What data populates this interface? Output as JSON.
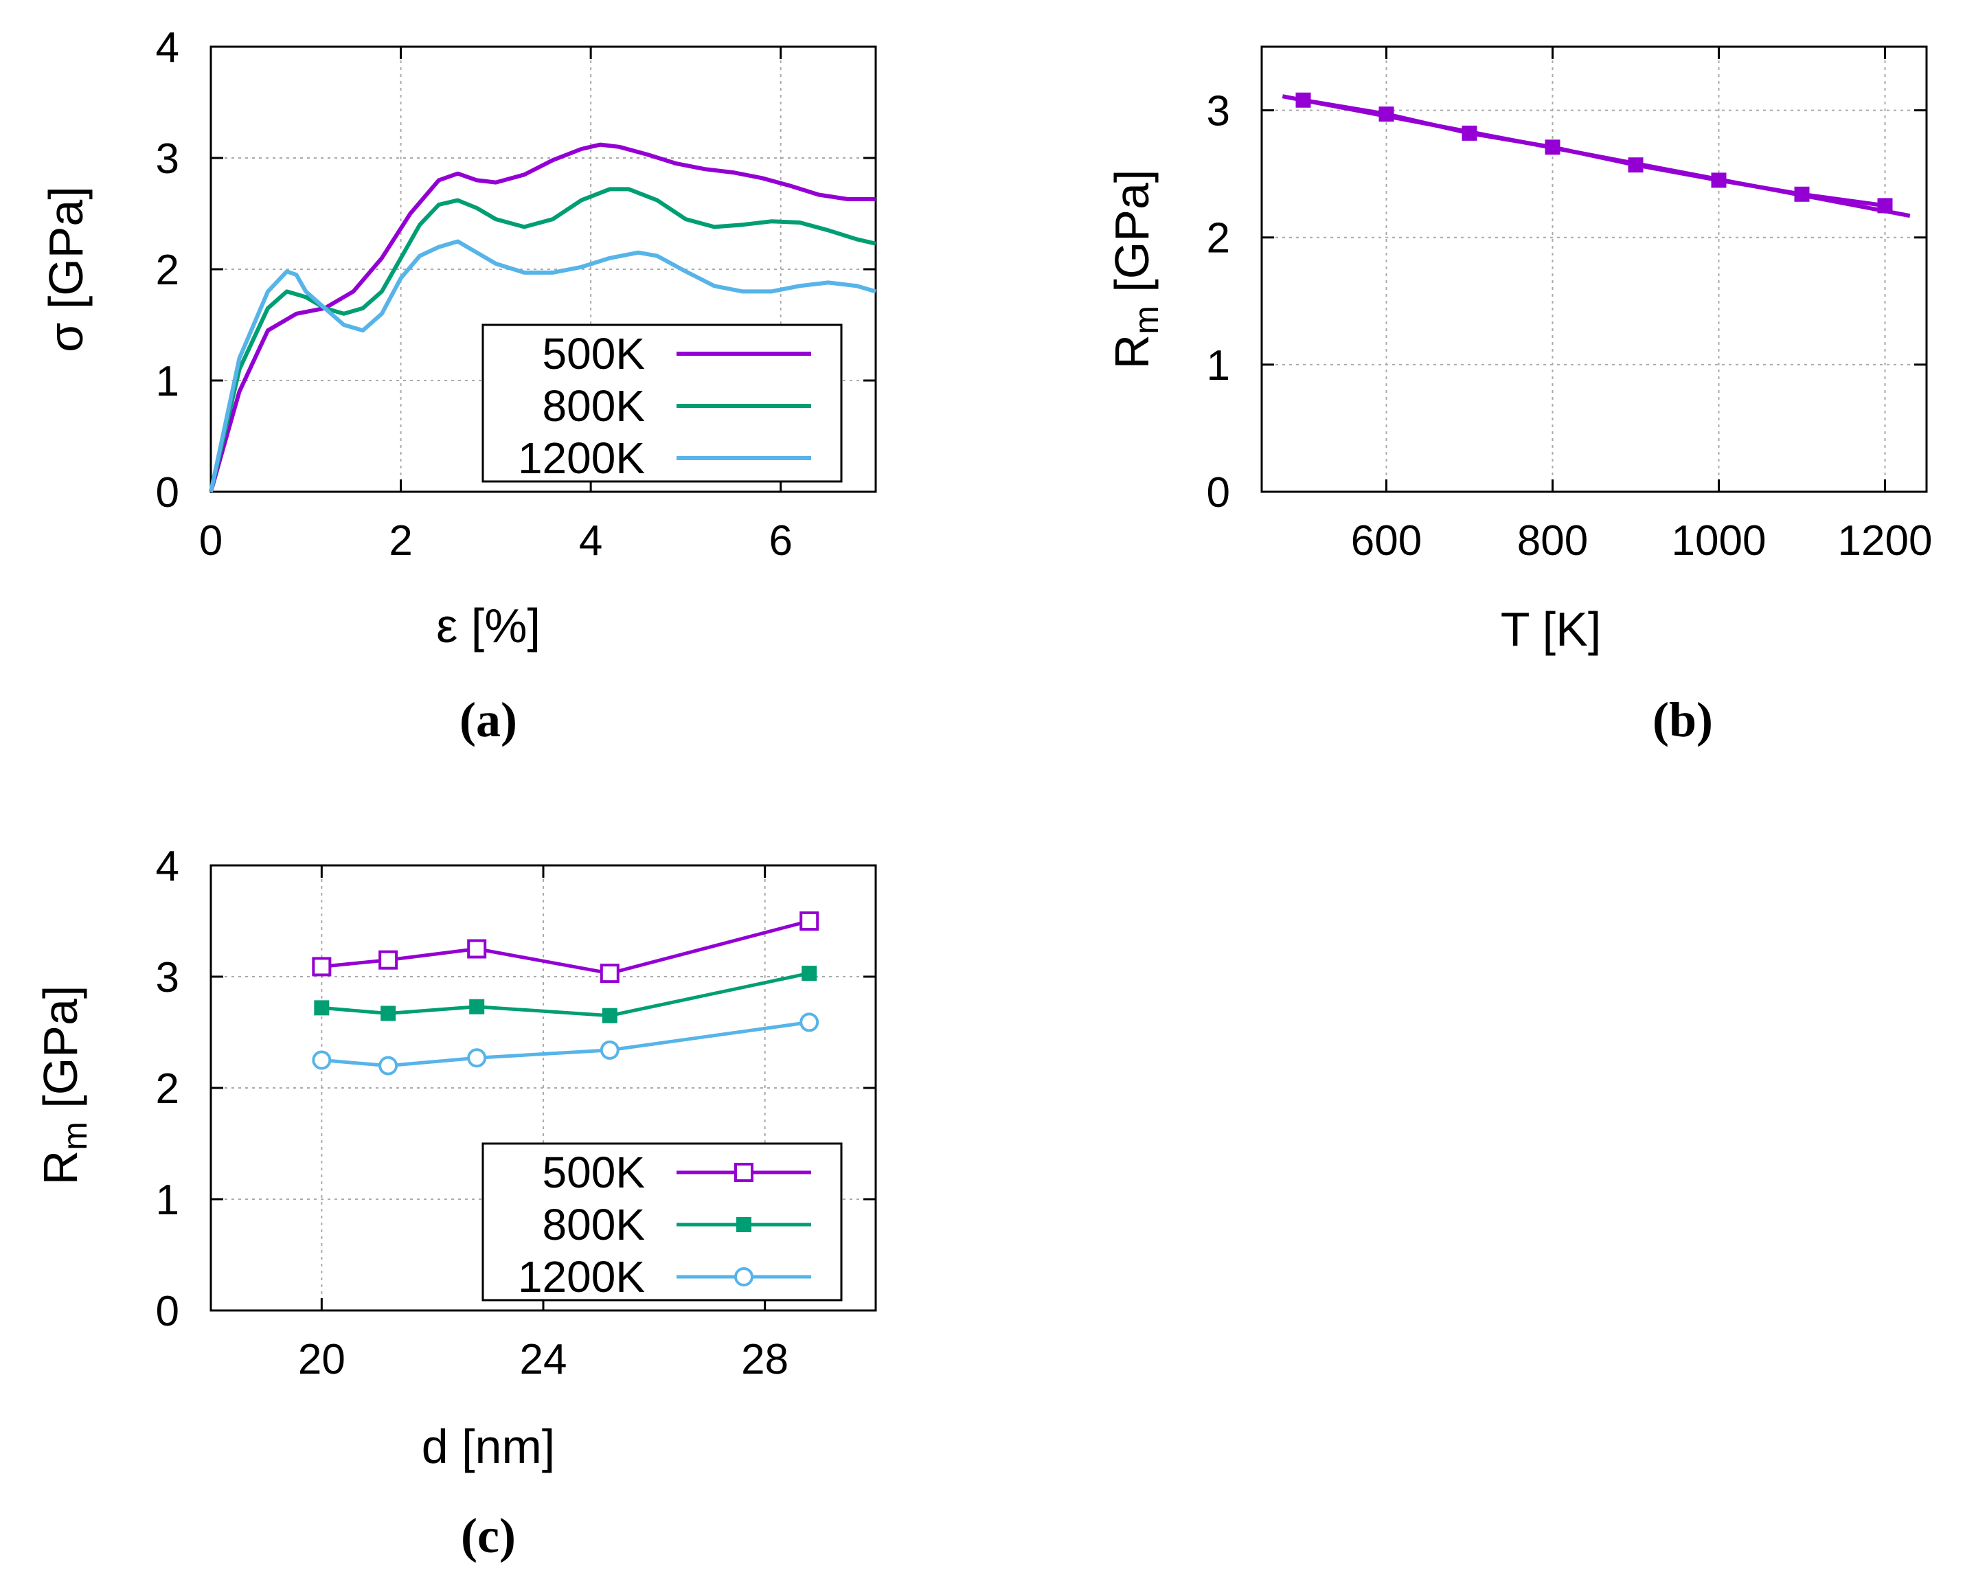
{
  "colors": {
    "p500": "#9400d3",
    "p800": "#009e73",
    "p1200": "#56b4e9"
  },
  "chart_data": [
    {
      "id": "a",
      "type": "line",
      "caption": "(a)",
      "xlabel": "ε [%]",
      "ylabel": "σ [GPa]",
      "xlim": [
        0,
        7
      ],
      "ylim": [
        0,
        4
      ],
      "xticks": [
        0,
        2,
        4,
        6
      ],
      "yticks": [
        0,
        1,
        2,
        3,
        4
      ],
      "grid": true,
      "legend": "bottom-right",
      "series": [
        {
          "name": "500K",
          "color": "#9400d3",
          "marker": "none",
          "x": [
            0,
            0.3,
            0.6,
            0.9,
            1.2,
            1.5,
            1.8,
            2.1,
            2.4,
            2.6,
            2.8,
            3.0,
            3.3,
            3.6,
            3.9,
            4.1,
            4.3,
            4.6,
            4.9,
            5.2,
            5.5,
            5.8,
            6.1,
            6.4,
            6.7,
            7.0
          ],
          "y": [
            0,
            0.9,
            1.45,
            1.6,
            1.65,
            1.8,
            2.1,
            2.5,
            2.8,
            2.86,
            2.8,
            2.78,
            2.85,
            2.98,
            3.08,
            3.12,
            3.1,
            3.03,
            2.95,
            2.9,
            2.87,
            2.82,
            2.75,
            2.67,
            2.63,
            2.63
          ]
        },
        {
          "name": "800K",
          "color": "#009e73",
          "marker": "none",
          "x": [
            0,
            0.3,
            0.6,
            0.8,
            1.0,
            1.2,
            1.4,
            1.6,
            1.8,
            2.0,
            2.2,
            2.4,
            2.6,
            2.8,
            3.0,
            3.3,
            3.6,
            3.9,
            4.2,
            4.4,
            4.7,
            5.0,
            5.3,
            5.6,
            5.9,
            6.2,
            6.5,
            6.8,
            7.0
          ],
          "y": [
            0,
            1.1,
            1.65,
            1.8,
            1.75,
            1.65,
            1.6,
            1.65,
            1.8,
            2.1,
            2.4,
            2.58,
            2.62,
            2.55,
            2.45,
            2.38,
            2.45,
            2.62,
            2.72,
            2.72,
            2.62,
            2.45,
            2.38,
            2.4,
            2.43,
            2.42,
            2.35,
            2.27,
            2.23
          ]
        },
        {
          "name": "1200K",
          "color": "#56b4e9",
          "marker": "none",
          "x": [
            0,
            0.3,
            0.6,
            0.8,
            0.9,
            1.0,
            1.2,
            1.4,
            1.6,
            1.8,
            2.0,
            2.2,
            2.4,
            2.6,
            2.8,
            3.0,
            3.3,
            3.6,
            3.9,
            4.2,
            4.5,
            4.7,
            5.0,
            5.3,
            5.6,
            5.9,
            6.2,
            6.5,
            6.8,
            7.0
          ],
          "y": [
            0,
            1.2,
            1.8,
            1.98,
            1.95,
            1.8,
            1.65,
            1.5,
            1.45,
            1.6,
            1.92,
            2.12,
            2.2,
            2.25,
            2.15,
            2.05,
            1.97,
            1.97,
            2.02,
            2.1,
            2.15,
            2.12,
            1.98,
            1.85,
            1.8,
            1.8,
            1.85,
            1.88,
            1.85,
            1.8
          ]
        }
      ]
    },
    {
      "id": "b",
      "type": "line",
      "caption": "(b)",
      "xlabel": "T [K]",
      "ylabel": "R",
      "ylabel_sub": "m",
      "ylabel_tail": " [GPa]",
      "xlim": [
        450,
        1250
      ],
      "ylim": [
        0,
        3.5
      ],
      "xticks": [
        600,
        800,
        1000,
        1200
      ],
      "yticks": [
        0,
        1,
        2,
        3
      ],
      "grid": true,
      "series": [
        {
          "name": "data",
          "color": "#9400d3",
          "marker": "square-filled",
          "x": [
            500,
            600,
            700,
            800,
            900,
            1000,
            1100,
            1200
          ],
          "y": [
            3.08,
            2.97,
            2.82,
            2.71,
            2.57,
            2.45,
            2.34,
            2.25
          ]
        },
        {
          "name": "fit",
          "color": "#9400d3",
          "marker": "none",
          "x": [
            475,
            1230
          ],
          "y": [
            3.11,
            2.17
          ]
        }
      ]
    },
    {
      "id": "c",
      "type": "line",
      "caption": "(c)",
      "xlabel": "d [nm]",
      "ylabel": "R",
      "ylabel_sub": "m",
      "ylabel_tail": " [GPa]",
      "xlim": [
        18,
        30
      ],
      "ylim": [
        0,
        4
      ],
      "xticks": [
        20,
        24,
        28
      ],
      "yticks": [
        0,
        1,
        2,
        3,
        4
      ],
      "grid": true,
      "legend": "bottom-right",
      "series": [
        {
          "name": "500K",
          "color": "#9400d3",
          "marker": "square-open",
          "x": [
            20,
            21.2,
            22.8,
            25.2,
            28.8
          ],
          "y": [
            3.09,
            3.15,
            3.25,
            3.03,
            3.5
          ]
        },
        {
          "name": "800K",
          "color": "#009e73",
          "marker": "square-filled",
          "x": [
            20,
            21.2,
            22.8,
            25.2,
            28.8
          ],
          "y": [
            2.72,
            2.67,
            2.73,
            2.65,
            3.03
          ]
        },
        {
          "name": "1200K",
          "color": "#56b4e9",
          "marker": "circle-open",
          "x": [
            20,
            21.2,
            22.8,
            25.2,
            28.8
          ],
          "y": [
            2.25,
            2.2,
            2.27,
            2.34,
            2.59
          ]
        }
      ]
    }
  ]
}
